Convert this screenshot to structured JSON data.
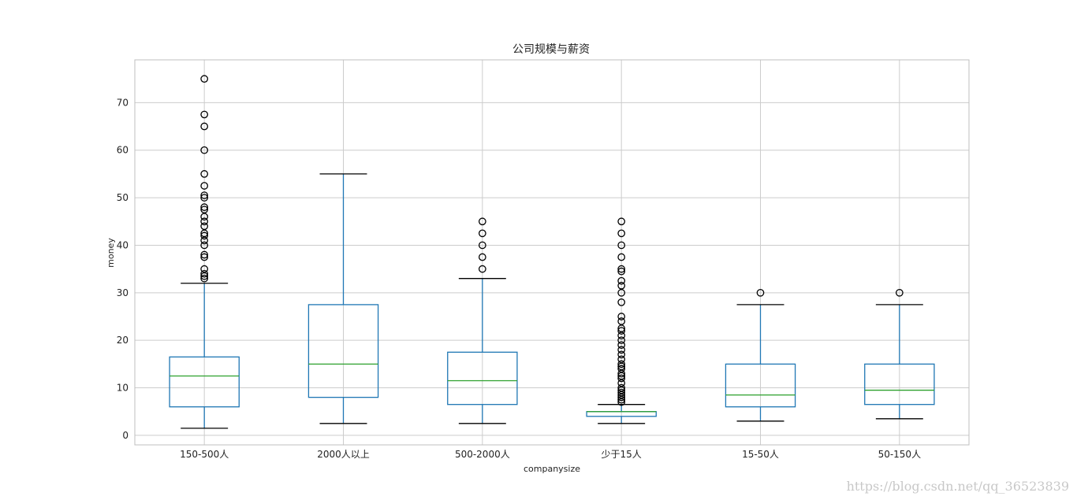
{
  "chart_data": {
    "type": "box",
    "title": "公司规模与薪资",
    "xlabel": "companysize",
    "ylabel": "money",
    "ylim": [
      -2,
      79
    ],
    "yticks": [
      0,
      10,
      20,
      30,
      40,
      50,
      60,
      70
    ],
    "grid": true,
    "colors": {
      "box": "#1f77b4",
      "median": "#2ca02c",
      "cap": "#000000",
      "outlier": "#000000",
      "grid": "#cccccc",
      "frame": "#bfbfbf"
    },
    "categories": [
      "150-500人",
      "2000人以上",
      "500-2000人",
      "少于15人",
      "15-50人",
      "50-150人"
    ],
    "boxes": [
      {
        "category": "150-500人",
        "whislo": 1.5,
        "q1": 6,
        "med": 12.5,
        "q3": 16.5,
        "whishi": 32,
        "fliers": [
          33,
          33.5,
          34,
          35,
          37.5,
          38,
          40,
          41,
          42,
          42.5,
          44,
          45,
          46,
          47.5,
          48,
          50,
          50.5,
          52.5,
          55,
          60,
          65,
          67.5,
          75
        ]
      },
      {
        "category": "2000人以上",
        "whislo": 2.5,
        "q1": 8,
        "med": 15,
        "q3": 27.5,
        "whishi": 55,
        "fliers": []
      },
      {
        "category": "500-2000人",
        "whislo": 2.5,
        "q1": 6.5,
        "med": 11.5,
        "q3": 17.5,
        "whishi": 33,
        "fliers": [
          35,
          37.5,
          40,
          42.5,
          45
        ]
      },
      {
        "category": "少于15人",
        "whislo": 2.5,
        "q1": 4,
        "med": 5,
        "q3": 5,
        "whishi": 6.5,
        "fliers": [
          7,
          7.5,
          8,
          8.5,
          9,
          9.5,
          10,
          11,
          12,
          12.5,
          13,
          14,
          14.5,
          15,
          16,
          17,
          18,
          19,
          20,
          21,
          22,
          22.5,
          24,
          25,
          28,
          30,
          31.5,
          32.5,
          34.5,
          35,
          37.5,
          40,
          42.5,
          45
        ]
      },
      {
        "category": "15-50人",
        "whislo": 3,
        "q1": 6,
        "med": 8.5,
        "q3": 15,
        "whishi": 27.5,
        "fliers": [
          30
        ]
      },
      {
        "category": "50-150人",
        "whislo": 3.5,
        "q1": 6.5,
        "med": 9.5,
        "q3": 15,
        "whishi": 27.5,
        "fliers": [
          30
        ]
      }
    ]
  },
  "watermark": "https://blog.csdn.net/qq_36523839"
}
